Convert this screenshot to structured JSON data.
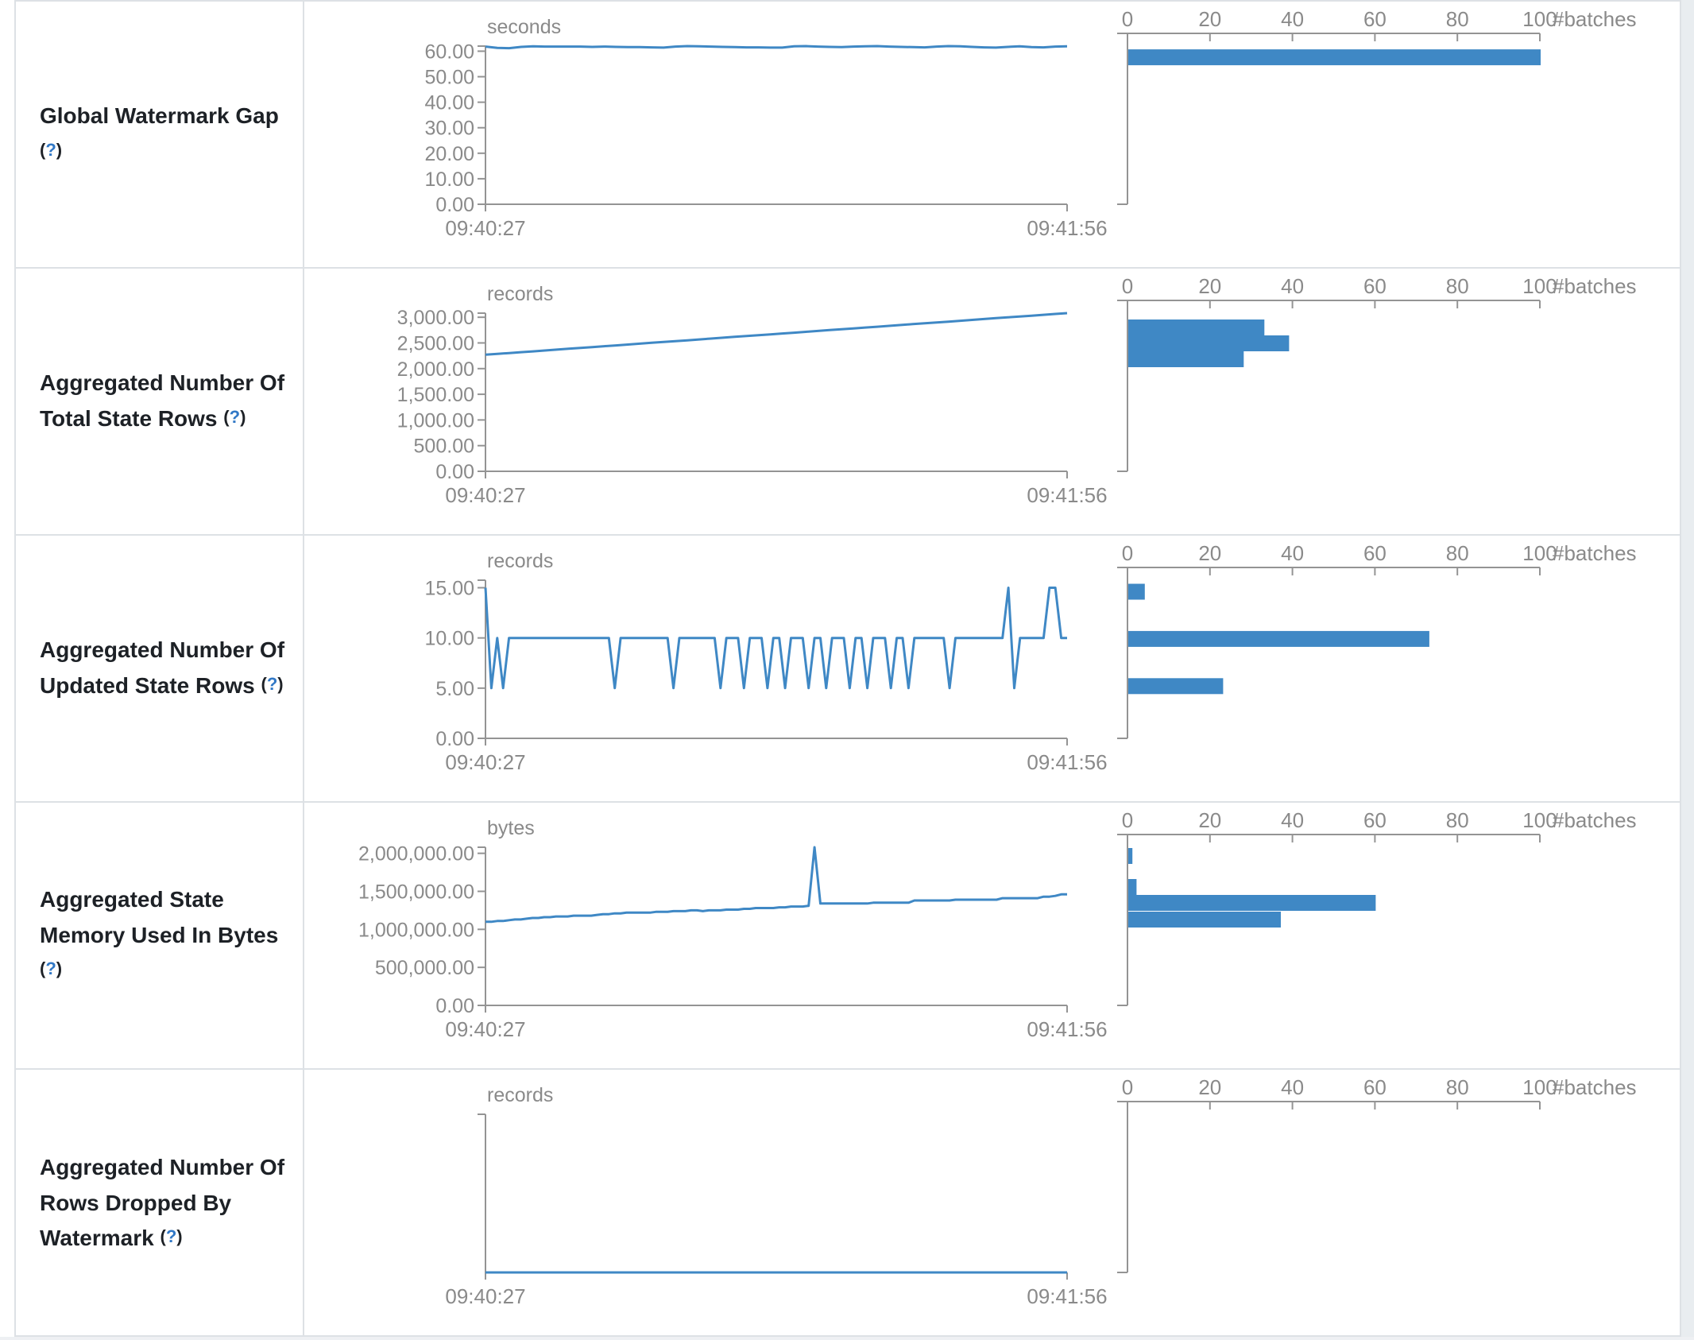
{
  "colors": {
    "accent_blue": "#3f88c5",
    "axis_gray": "#949494",
    "tick_text_gray": "#8a8a8a",
    "label_dark": "#1d2126",
    "help_blue": "#3178c6",
    "table_border": "#dde1e5"
  },
  "help": {
    "open": "(",
    "q": "?",
    "close": ")"
  },
  "batches_axis": {
    "ticks": [
      0,
      20,
      40,
      60,
      80,
      100
    ],
    "label": "#batches"
  },
  "x_axis": {
    "start": "09:40:27",
    "end": "09:41:56"
  },
  "chart_data": [
    {
      "type": "line",
      "name": "Global Watermark Gap",
      "unit": "seconds",
      "y_max": 62,
      "y_ticks": [
        [
          60,
          "60.00"
        ],
        [
          50,
          "50.00"
        ],
        [
          40,
          "40.00"
        ],
        [
          30,
          "30.00"
        ],
        [
          20,
          "20.00"
        ],
        [
          10,
          "10.00"
        ],
        [
          0,
          "0.00"
        ]
      ],
      "x_start": "09:40:27",
      "x_end": "09:41:56",
      "values": [
        61.8,
        61.3,
        61.2,
        61.7,
        61.9,
        61.8,
        61.8,
        61.8,
        61.8,
        61.7,
        61.8,
        61.7,
        61.6,
        61.6,
        61.5,
        61.4,
        61.8,
        62.0,
        61.9,
        61.8,
        61.7,
        61.6,
        61.5,
        61.5,
        61.4,
        61.4,
        61.9,
        62.0,
        61.8,
        61.7,
        61.6,
        61.8,
        61.9,
        62.0,
        61.8,
        61.7,
        61.6,
        61.5,
        61.8,
        62.0,
        61.9,
        61.7,
        61.5,
        61.4,
        61.7,
        61.9,
        61.6,
        61.5,
        61.8,
        61.9
      ],
      "histogram": {
        "bars": [
          {
            "value": 57.6,
            "count": 100
          }
        ]
      }
    },
    {
      "type": "line",
      "name": "Aggregated Number Of Total State Rows",
      "unit": "records",
      "y_max": 3080,
      "y_ticks": [
        [
          3000,
          "3,000.00"
        ],
        [
          2500,
          "2,500.00"
        ],
        [
          2000,
          "2,000.00"
        ],
        [
          1500,
          "1,500.00"
        ],
        [
          1000,
          "1,000.00"
        ],
        [
          500,
          "500.00"
        ],
        [
          0,
          "0.00"
        ]
      ],
      "x_start": "09:40:27",
      "x_end": "09:41:56",
      "values": [
        2270,
        2287,
        2303,
        2320,
        2336,
        2353,
        2369,
        2386,
        2402,
        2419,
        2436,
        2452,
        2469,
        2485,
        2502,
        2518,
        2535,
        2551,
        2568,
        2584,
        2601,
        2618,
        2634,
        2651,
        2667,
        2684,
        2700,
        2717,
        2733,
        2750,
        2766,
        2783,
        2800,
        2816,
        2833,
        2849,
        2866,
        2882,
        2899,
        2915,
        2932,
        2948,
        2965,
        2982,
        2998,
        3015,
        3031,
        3048,
        3064,
        3080
      ],
      "histogram": {
        "bars": [
          {
            "value": 2801,
            "count": 33
          },
          {
            "value": 2492,
            "count": 39
          },
          {
            "value": 2182,
            "count": 28
          }
        ]
      }
    },
    {
      "type": "line",
      "name": "Aggregated Number Of Updated State Rows",
      "unit": "records",
      "y_max": 15.75,
      "y_ticks": [
        [
          15,
          "15.00"
        ],
        [
          10,
          "10.00"
        ],
        [
          5,
          "5.00"
        ],
        [
          0,
          "0.00"
        ]
      ],
      "x_start": "09:40:27",
      "x_end": "09:41:56",
      "values": [
        15,
        5,
        10,
        5,
        10,
        10,
        10,
        10,
        10,
        10,
        10,
        10,
        10,
        10,
        10,
        10,
        10,
        10,
        10,
        10,
        10,
        10,
        5,
        10,
        10,
        10,
        10,
        10,
        10,
        10,
        10,
        10,
        5,
        10,
        10,
        10,
        10,
        10,
        10,
        10,
        5,
        10,
        10,
        10,
        5,
        10,
        10,
        10,
        5,
        10,
        10,
        5,
        10,
        10,
        10,
        5,
        10,
        10,
        5,
        10,
        10,
        10,
        5,
        10,
        10,
        5,
        10,
        10,
        10,
        5,
        10,
        10,
        5,
        10,
        10,
        10,
        10,
        10,
        10,
        5,
        10,
        10,
        10,
        10,
        10,
        10,
        10,
        10,
        10,
        15,
        5,
        10,
        10,
        10,
        10,
        10,
        15,
        15,
        10,
        10
      ],
      "histogram": {
        "bars": [
          {
            "value": 14.6,
            "count": 4
          },
          {
            "value": 9.9,
            "count": 73
          },
          {
            "value": 5.2,
            "count": 23
          }
        ]
      }
    },
    {
      "type": "line",
      "name": "Aggregated State Memory Used In Bytes",
      "unit": "bytes",
      "y_max": 2080000,
      "y_ticks": [
        [
          2000000,
          "2,000,000.00"
        ],
        [
          1500000,
          "1,500,000.00"
        ],
        [
          1000000,
          "1,000,000.00"
        ],
        [
          500000,
          "500,000.00"
        ],
        [
          0,
          "0.00"
        ]
      ],
      "x_start": "09:40:27",
      "x_end": "09:41:56",
      "values": [
        1100000,
        1100000,
        1110000,
        1110000,
        1120000,
        1130000,
        1130000,
        1140000,
        1150000,
        1150000,
        1160000,
        1160000,
        1170000,
        1170000,
        1170000,
        1180000,
        1180000,
        1180000,
        1180000,
        1190000,
        1200000,
        1200000,
        1210000,
        1210000,
        1220000,
        1220000,
        1220000,
        1220000,
        1220000,
        1230000,
        1230000,
        1230000,
        1240000,
        1240000,
        1240000,
        1250000,
        1250000,
        1240000,
        1250000,
        1250000,
        1250000,
        1260000,
        1260000,
        1260000,
        1270000,
        1270000,
        1280000,
        1280000,
        1280000,
        1280000,
        1290000,
        1290000,
        1300000,
        1300000,
        1300000,
        1310000,
        2080000,
        1340000,
        1340000,
        1340000,
        1340000,
        1340000,
        1340000,
        1340000,
        1340000,
        1340000,
        1350000,
        1350000,
        1350000,
        1350000,
        1350000,
        1350000,
        1350000,
        1380000,
        1380000,
        1380000,
        1380000,
        1380000,
        1380000,
        1380000,
        1390000,
        1390000,
        1390000,
        1390000,
        1390000,
        1390000,
        1390000,
        1390000,
        1410000,
        1410000,
        1410000,
        1410000,
        1410000,
        1410000,
        1410000,
        1430000,
        1430000,
        1440000,
        1460000,
        1460000
      ],
      "histogram": {
        "bars": [
          {
            "value": 1965000,
            "count": 1
          },
          {
            "value": 1557000,
            "count": 2
          },
          {
            "value": 1348000,
            "count": 60
          },
          {
            "value": 1129000,
            "count": 37
          }
        ]
      }
    },
    {
      "type": "line",
      "name": "Aggregated Number Of Rows Dropped By Watermark",
      "unit": "records",
      "y_max": 10,
      "y_ticks": [],
      "x_start": "09:40:27",
      "x_end": "09:41:56",
      "values": [
        0,
        0,
        0,
        0,
        0,
        0,
        0,
        0,
        0,
        0
      ],
      "histogram": {
        "bars": []
      }
    }
  ]
}
